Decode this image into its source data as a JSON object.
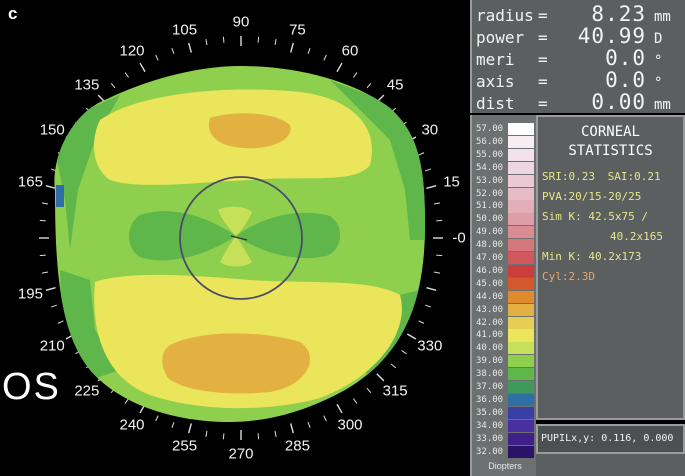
{
  "panel_label": "c",
  "eye_label": "OS",
  "degree_labels": [
    {
      "text": "90",
      "deg": 90
    },
    {
      "text": "75",
      "deg": 75
    },
    {
      "text": "60",
      "deg": 60
    },
    {
      "text": "45",
      "deg": 45
    },
    {
      "text": "30",
      "deg": 30
    },
    {
      "text": "15",
      "deg": 15
    },
    {
      "text": "-0",
      "deg": 0
    },
    {
      "text": "330",
      "deg": 330
    },
    {
      "text": "315",
      "deg": 315
    },
    {
      "text": "300",
      "deg": 300
    },
    {
      "text": "285",
      "deg": 285
    },
    {
      "text": "270",
      "deg": 270
    },
    {
      "text": "255",
      "deg": 255
    },
    {
      "text": "240",
      "deg": 240
    },
    {
      "text": "225",
      "deg": 225
    },
    {
      "text": "210",
      "deg": 210
    },
    {
      "text": "195",
      "deg": 195
    },
    {
      "text": "165",
      "deg": 165
    },
    {
      "text": "150",
      "deg": 150
    },
    {
      "text": "135",
      "deg": 135
    },
    {
      "text": "120",
      "deg": 120
    },
    {
      "text": "105",
      "deg": 105
    }
  ],
  "readout": {
    "radius": {
      "label": "radius",
      "eq": "=",
      "value": "8.23",
      "unit": "mm"
    },
    "power": {
      "label": "power",
      "eq": "=",
      "value": "40.99",
      "unit": "D"
    },
    "meri": {
      "label": "meri",
      "eq": "=",
      "value": "0.0",
      "unit": "°"
    },
    "axis": {
      "label": "axis",
      "eq": "=",
      "value": "0.0",
      "unit": "°"
    },
    "dist": {
      "label": "dist",
      "eq": "=",
      "value": "0.00",
      "unit": "mm"
    }
  },
  "scale": {
    "title": "Diopters",
    "entries": [
      {
        "label": "57.00",
        "color": "#ffffff"
      },
      {
        "label": "56.00",
        "color": "#f7eef2"
      },
      {
        "label": "55.00",
        "color": "#f2e2ea"
      },
      {
        "label": "54.00",
        "color": "#eed6e0"
      },
      {
        "label": "53.00",
        "color": "#eac9d5"
      },
      {
        "label": "52.00",
        "color": "#e6bcc8"
      },
      {
        "label": "51.00",
        "color": "#e2aeb8"
      },
      {
        "label": "50.00",
        "color": "#dd9ea6"
      },
      {
        "label": "49.00",
        "color": "#d98c92"
      },
      {
        "label": "48.00",
        "color": "#d5767a"
      },
      {
        "label": "47.00",
        "color": "#d1585c"
      },
      {
        "label": "46.00",
        "color": "#cc3d3d"
      },
      {
        "label": "45.00",
        "color": "#d5582a"
      },
      {
        "label": "44.00",
        "color": "#e08a2e"
      },
      {
        "label": "43.00",
        "color": "#e3b142"
      },
      {
        "label": "42.00",
        "color": "#e6cd55"
      },
      {
        "label": "41.00",
        "color": "#eae55a"
      },
      {
        "label": "40.00",
        "color": "#c6e05a"
      },
      {
        "label": "39.00",
        "color": "#8fcf4e"
      },
      {
        "label": "38.00",
        "color": "#5fb64a"
      },
      {
        "label": "37.00",
        "color": "#3f9a5a"
      },
      {
        "label": "36.00",
        "color": "#2e6fa6"
      },
      {
        "label": "35.00",
        "color": "#3a3fa8"
      },
      {
        "label": "34.00",
        "color": "#4a2fa0"
      },
      {
        "label": "33.00",
        "color": "#3e2088"
      },
      {
        "label": "32.00",
        "color": "#2a1366"
      }
    ]
  },
  "stats": {
    "title_1": "CORNEAL",
    "title_2": "STATISTICS",
    "sri": "SRI:0.23",
    "sai": "SAI:0.21",
    "pva": "PVA:20/15-20/25",
    "simk_1": "Sim K: 42.5x75 /",
    "simk_2": "40.2x165",
    "mink": "Min K: 40.2x173",
    "cyl": "Cyl:2.3D"
  },
  "pupil": "PUPILx,y: 0.116, 0.000"
}
